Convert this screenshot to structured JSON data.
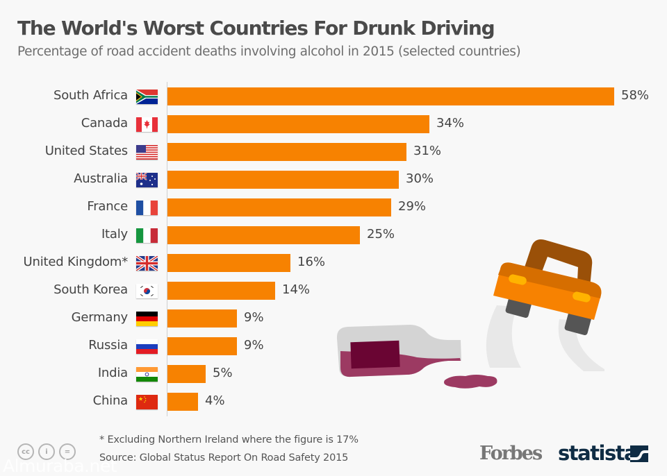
{
  "header": {
    "title": "The World's Worst Countries For Drunk Driving",
    "subtitle": "Percentage of road accident deaths involving alcohol in 2015 (selected countries)"
  },
  "chart_data": {
    "type": "bar",
    "orientation": "horizontal",
    "title": "The World's Worst Countries For Drunk Driving",
    "subtitle": "Percentage of road accident deaths involving alcohol in 2015 (selected countries)",
    "xlabel": "",
    "ylabel": "",
    "unit": "%",
    "xlim": [
      0,
      58
    ],
    "grid": false,
    "legend": "none",
    "bar_color": "#f78201",
    "categories": [
      "South Africa",
      "Canada",
      "United States",
      "Australia",
      "France",
      "Italy",
      "United Kingdom*",
      "South Korea",
      "Germany",
      "Russia",
      "India",
      "China"
    ],
    "values": [
      58,
      34,
      31,
      30,
      29,
      25,
      16,
      14,
      9,
      9,
      5,
      4
    ],
    "value_labels": [
      "58%",
      "34%",
      "31%",
      "30%",
      "29%",
      "25%",
      "16%",
      "14%",
      "9%",
      "9%",
      "5%",
      "4%"
    ],
    "flags": [
      "south-africa-flag-icon",
      "canada-flag-icon",
      "united-states-flag-icon",
      "australia-flag-icon",
      "france-flag-icon",
      "italy-flag-icon",
      "united-kingdom-flag-icon",
      "south-korea-flag-icon",
      "germany-flag-icon",
      "russia-flag-icon",
      "india-flag-icon",
      "china-flag-icon"
    ]
  },
  "footer": {
    "footnote": "* Excluding Northern Ireland where the figure is 17%",
    "source": "Source: Global Status Report On Road Safety 2015",
    "license_icons": [
      "cc",
      "i",
      "="
    ],
    "watermark": "Almuraba.net",
    "brand_forbes": "Forbes",
    "brand_statista": "statista"
  }
}
